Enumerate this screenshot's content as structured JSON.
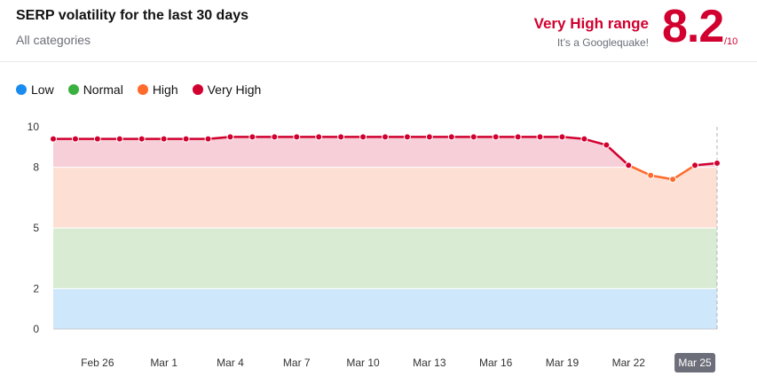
{
  "header": {
    "title": "SERP volatility for the last 30 days",
    "subtitle": "All categories",
    "range_label": "Very High range",
    "range_sub": "It’s a Googlequake!",
    "score": "8.2",
    "score_denominator": "/10"
  },
  "legend": [
    {
      "label": "Low",
      "color": "#1a8cf0"
    },
    {
      "label": "Normal",
      "color": "#3ab03e"
    },
    {
      "label": "High",
      "color": "#ff6a2d"
    },
    {
      "label": "Very High",
      "color": "#d1002f"
    }
  ],
  "chart_data": {
    "type": "line",
    "title": "SERP volatility for the last 30 days",
    "xlabel": "",
    "ylabel": "",
    "ylim": [
      0,
      10
    ],
    "y_ticks": [
      0,
      2,
      5,
      8,
      10
    ],
    "x_tick_labels": [
      "Feb 26",
      "Mar 1",
      "Mar 4",
      "Mar 7",
      "Mar 10",
      "Mar 13",
      "Mar 16",
      "Mar 19",
      "Mar 22",
      "Mar 25"
    ],
    "x_tick_indices": [
      2,
      5,
      8,
      11,
      14,
      17,
      20,
      23,
      26,
      29
    ],
    "highlighted_x": "Mar 25",
    "bands": [
      {
        "label": "Low",
        "from": 0,
        "to": 2,
        "color": "#cfe7fb"
      },
      {
        "label": "Normal",
        "from": 2,
        "to": 5,
        "color": "#d9ecd3"
      },
      {
        "label": "High",
        "from": 5,
        "to": 8,
        "color": "#fde0d3"
      },
      {
        "label": "Very High",
        "from": 8,
        "to": 10,
        "color": "#f6cfd9"
      }
    ],
    "series": [
      {
        "values": [
          9.4,
          9.4,
          9.4,
          9.4,
          9.4,
          9.4,
          9.4,
          9.4,
          9.5,
          9.5,
          9.5,
          9.5,
          9.5,
          9.5,
          9.5,
          9.5,
          9.5,
          9.5,
          9.5,
          9.5,
          9.5,
          9.5,
          9.5,
          9.5,
          9.4,
          9.1,
          8.1,
          7.6,
          7.4,
          8.1,
          8.2
        ]
      }
    ],
    "grid": true
  }
}
